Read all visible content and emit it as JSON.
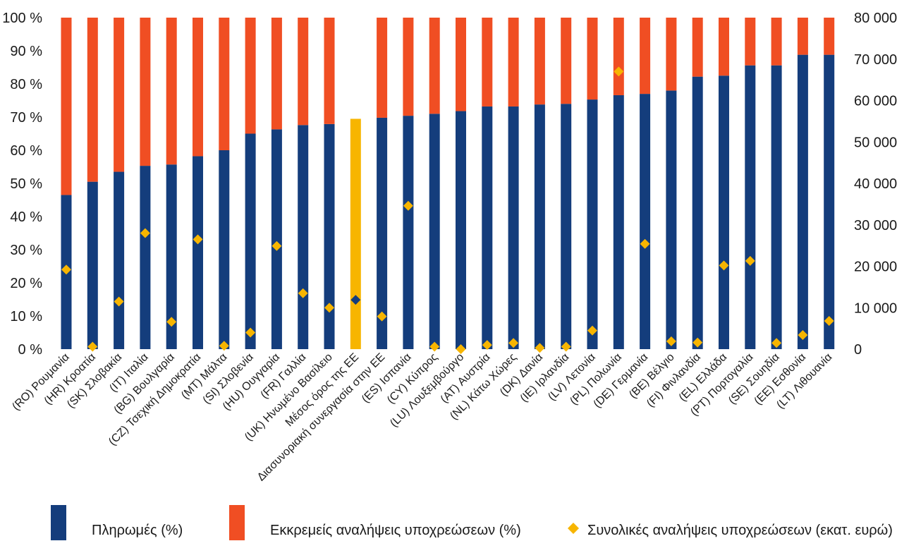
{
  "chart_data": {
    "type": "bar",
    "stacked": true,
    "percent_stacked": true,
    "title": "",
    "xlabel": "",
    "ylabel": "",
    "ylim": [
      0,
      100
    ],
    "y2lim": [
      0,
      80000
    ],
    "grid": false,
    "legend_position": "bottom",
    "y_ticks": [
      "0 %",
      "10 %",
      "20 %",
      "30 %",
      "40 %",
      "50 %",
      "60 %",
      "70 %",
      "80 %",
      "90 %",
      "100 %"
    ],
    "y2_ticks": [
      "0",
      "10 000",
      "20 000",
      "30 000",
      "40 000",
      "50 000",
      "60 000",
      "70 000",
      "80 000"
    ],
    "categories": [
      "(RO) Ρουμανία",
      "(HR) Κροατία",
      "(SK) Σλοβακία",
      "(IT) Ιταλία",
      "(BG) Βουλγαρία",
      "(CZ) Τσεχική Δημοκρατία",
      "(MT) Μάλτα",
      "(SI) Σλοβενία",
      "(HU) Ουγγαρία",
      "(FR) Γαλλία",
      "(UK) Ηνωμένο Βασίλειο",
      "Μέσος όρος της ΕΕ",
      "Διασυνοριακή συνεργασία στην ΕΕ",
      "(ES) Ισπανία",
      "(CY) Κύπρος",
      "(LU) Λουξεμβούργο",
      "(AT) Αυστρία",
      "(NL) Κάτω Χώρες",
      "(DK) Δανία",
      "(IE) Ιρλανδία",
      "(LV) Λετονία",
      "(PL) Πολωνία",
      "(DE) Γερμανία",
      "(BE) Βέλγιο",
      "(FI) Φινλανδία",
      "(EL) Ελλάδα",
      "(PT) Πορτογαλία",
      "(SE) Σουηδία",
      "(EE) Εσθονία",
      "(LT) Λιθουανία"
    ],
    "highlight_category": "Μέσος όρος της ΕΕ",
    "series": [
      {
        "name": "Πληρωμές (%)",
        "type": "bar",
        "axis": "left",
        "color": "#143d7c",
        "values": [
          46.5,
          50.5,
          53.5,
          55.3,
          55.7,
          58.2,
          60.0,
          65.0,
          66.3,
          67.6,
          67.9,
          69.5,
          69.8,
          70.4,
          71.0,
          71.8,
          73.2,
          73.2,
          73.8,
          74.0,
          75.3,
          76.6,
          77.0,
          78.0,
          82.2,
          82.5,
          85.6,
          85.6,
          88.8,
          88.8
        ]
      },
      {
        "name": "Εκκρεμείς αναλήψεις υποχρεώσεων (%)",
        "type": "bar",
        "axis": "left",
        "color": "#f04e23",
        "values": [
          53.5,
          49.5,
          46.5,
          44.7,
          44.3,
          41.8,
          40.0,
          35.0,
          33.7,
          32.4,
          32.1,
          30.5,
          30.2,
          29.6,
          29.0,
          28.2,
          26.8,
          26.8,
          26.2,
          26.0,
          24.7,
          23.4,
          23.0,
          22.0,
          17.8,
          17.5,
          14.4,
          14.4,
          11.2,
          11.2
        ]
      },
      {
        "name": "Συνολικές αναλήψεις υποχρεώσεων (εκατ. ευρώ)",
        "type": "scatter",
        "axis": "right",
        "color": "#f7b500",
        "values": [
          19200,
          600,
          11500,
          28000,
          6600,
          26500,
          800,
          4000,
          24900,
          13500,
          10000,
          11900,
          7900,
          34600,
          600,
          0,
          1000,
          1500,
          300,
          600,
          4500,
          67000,
          25400,
          1900,
          1600,
          20200,
          21300,
          1500,
          3400,
          6800
        ]
      }
    ],
    "highlight_colors": {
      "bar": "#f7b500",
      "point": "#143d7c"
    }
  }
}
